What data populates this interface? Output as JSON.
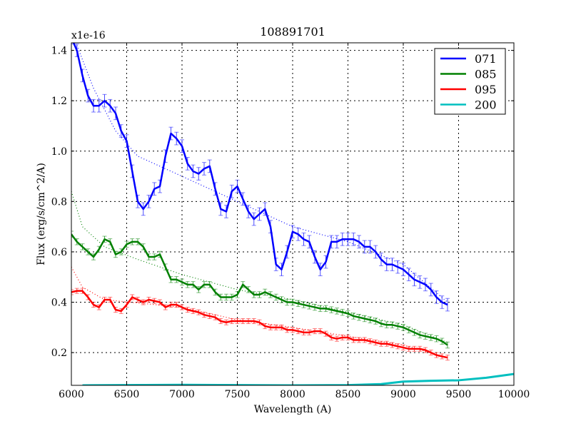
{
  "chart_data": {
    "type": "line",
    "title": "108891701",
    "xlabel": "Wavelength (A)",
    "ylabel": "Flux (erg/s/cm^2/A)",
    "y_offset_label": "x1e-16",
    "xlim": [
      6000,
      10000
    ],
    "ylim": [
      0.07,
      1.43
    ],
    "xticks": [
      6000,
      6500,
      7000,
      7500,
      8000,
      8500,
      9000,
      9500,
      10000
    ],
    "yticks": [
      0.2,
      0.4,
      0.6,
      0.8,
      1.0,
      1.2,
      1.4
    ],
    "ytick_labels": [
      "0.2",
      "0.4",
      "0.6",
      "0.8",
      "1.0",
      "1.2",
      "1.4"
    ],
    "grid": true,
    "legend_position": "top-right",
    "series": [
      {
        "name": "071",
        "color": "#0000ff",
        "err": 0.025,
        "x0": 6000,
        "dx": 50,
        "values": [
          1.45,
          1.4,
          1.3,
          1.22,
          1.18,
          1.18,
          1.2,
          1.18,
          1.15,
          1.08,
          1.04,
          0.92,
          0.8,
          0.77,
          0.8,
          0.85,
          0.86,
          0.98,
          1.07,
          1.05,
          1.02,
          0.95,
          0.92,
          0.91,
          0.93,
          0.94,
          0.85,
          0.77,
          0.76,
          0.84,
          0.86,
          0.81,
          0.76,
          0.73,
          0.75,
          0.77,
          0.7,
          0.55,
          0.53,
          0.6,
          0.68,
          0.67,
          0.65,
          0.64,
          0.58,
          0.53,
          0.56,
          0.64,
          0.64,
          0.65,
          0.65,
          0.65,
          0.64,
          0.62,
          0.62,
          0.6,
          0.57,
          0.55,
          0.55,
          0.54,
          0.53,
          0.51,
          0.49,
          0.48,
          0.47,
          0.45,
          0.42,
          0.4,
          0.39
        ],
        "fit": [
          [
            6050,
            1.42
          ],
          [
            6200,
            1.25
          ],
          [
            6400,
            1.08
          ],
          [
            6600,
            0.98
          ],
          [
            7000,
            0.9
          ],
          [
            7500,
            0.8
          ],
          [
            8000,
            0.7
          ],
          [
            8500,
            0.64
          ],
          [
            9000,
            0.55
          ],
          [
            9400,
            0.4
          ]
        ]
      },
      {
        "name": "085",
        "color": "#008000",
        "err": 0.012,
        "x0": 6000,
        "dx": 50,
        "values": [
          0.67,
          0.64,
          0.62,
          0.6,
          0.58,
          0.61,
          0.65,
          0.64,
          0.59,
          0.6,
          0.63,
          0.64,
          0.64,
          0.62,
          0.58,
          0.58,
          0.59,
          0.54,
          0.49,
          0.49,
          0.48,
          0.47,
          0.47,
          0.45,
          0.47,
          0.47,
          0.44,
          0.42,
          0.42,
          0.42,
          0.43,
          0.47,
          0.45,
          0.43,
          0.43,
          0.44,
          0.43,
          0.42,
          0.41,
          0.4,
          0.4,
          0.395,
          0.39,
          0.385,
          0.38,
          0.375,
          0.375,
          0.37,
          0.365,
          0.36,
          0.355,
          0.345,
          0.34,
          0.335,
          0.33,
          0.325,
          0.315,
          0.31,
          0.31,
          0.305,
          0.3,
          0.29,
          0.28,
          0.27,
          0.265,
          0.26,
          0.255,
          0.245,
          0.23
        ],
        "fit": [
          [
            6000,
            0.84
          ],
          [
            6100,
            0.7
          ],
          [
            6300,
            0.62
          ],
          [
            6600,
            0.57
          ],
          [
            7000,
            0.51
          ],
          [
            7500,
            0.45
          ],
          [
            8000,
            0.41
          ],
          [
            9000,
            0.31
          ],
          [
            9400,
            0.24
          ]
        ]
      },
      {
        "name": "095",
        "color": "#ff0000",
        "err": 0.01,
        "x0": 6000,
        "dx": 50,
        "values": [
          0.44,
          0.445,
          0.445,
          0.42,
          0.39,
          0.38,
          0.41,
          0.41,
          0.37,
          0.365,
          0.39,
          0.42,
          0.41,
          0.4,
          0.41,
          0.405,
          0.4,
          0.38,
          0.39,
          0.39,
          0.38,
          0.37,
          0.365,
          0.36,
          0.35,
          0.345,
          0.34,
          0.325,
          0.32,
          0.325,
          0.325,
          0.325,
          0.325,
          0.325,
          0.32,
          0.305,
          0.3,
          0.3,
          0.3,
          0.29,
          0.29,
          0.285,
          0.28,
          0.28,
          0.285,
          0.285,
          0.275,
          0.26,
          0.255,
          0.26,
          0.26,
          0.25,
          0.25,
          0.25,
          0.245,
          0.24,
          0.235,
          0.235,
          0.23,
          0.225,
          0.22,
          0.215,
          0.215,
          0.215,
          0.21,
          0.2,
          0.19,
          0.185,
          0.18
        ],
        "fit": [
          [
            6000,
            0.54
          ],
          [
            6100,
            0.46
          ],
          [
            6300,
            0.41
          ],
          [
            7000,
            0.38
          ],
          [
            7500,
            0.33
          ],
          [
            8000,
            0.3
          ],
          [
            9000,
            0.23
          ],
          [
            9400,
            0.18
          ]
        ]
      },
      {
        "name": "200",
        "color": "#00bfbf",
        "err": 0.004,
        "points": [
          [
            6100,
            0.07
          ],
          [
            6500,
            0.071
          ],
          [
            7000,
            0.072
          ],
          [
            7500,
            0.071
          ],
          [
            8000,
            0.07
          ],
          [
            8500,
            0.071
          ],
          [
            8800,
            0.075
          ],
          [
            9000,
            0.085
          ],
          [
            9250,
            0.088
          ],
          [
            9500,
            0.09
          ],
          [
            9750,
            0.1
          ],
          [
            10000,
            0.115
          ]
        ]
      }
    ]
  }
}
